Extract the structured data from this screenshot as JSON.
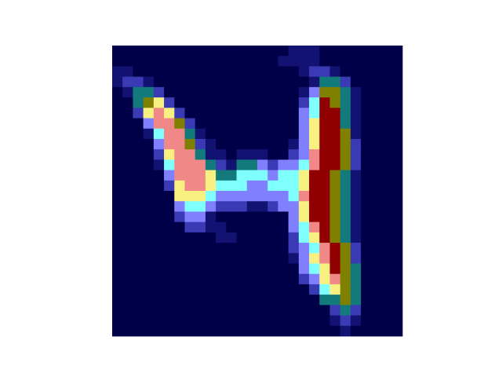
{
  "chart_data": {
    "type": "heatmap",
    "colors": [
      "#000048",
      "#121272",
      "#3a3ab4",
      "#8080ff",
      "#127a7a",
      "#80ffff",
      "#f8f080",
      "#f08888",
      "#808000",
      "#900000"
    ],
    "values": [
      [
        0,
        0,
        0,
        0,
        0,
        0,
        0,
        0,
        0,
        0,
        0,
        0,
        0,
        0,
        0,
        0,
        0,
        1,
        1,
        1,
        0,
        0,
        0,
        0,
        0,
        0,
        0,
        0
      ],
      [
        0,
        0,
        0,
        0,
        0,
        0,
        0,
        0,
        0,
        0,
        0,
        0,
        0,
        0,
        0,
        0,
        1,
        1,
        1,
        1,
        0,
        0,
        0,
        0,
        0,
        0,
        0,
        0
      ],
      [
        1,
        1,
        0,
        0,
        0,
        0,
        0,
        0,
        0,
        0,
        0,
        0,
        0,
        0,
        0,
        0,
        0,
        0,
        1,
        2,
        2,
        1,
        0,
        0,
        0,
        0,
        0,
        0
      ],
      [
        1,
        2,
        2,
        1,
        0,
        0,
        0,
        0,
        0,
        0,
        0,
        0,
        0,
        0,
        0,
        0,
        0,
        0,
        0,
        1,
        4,
        4,
        2,
        0,
        0,
        0,
        0,
        0
      ],
      [
        0,
        1,
        4,
        4,
        2,
        0,
        0,
        0,
        0,
        0,
        0,
        0,
        0,
        0,
        0,
        0,
        0,
        0,
        1,
        3,
        8,
        8,
        4,
        1,
        0,
        0,
        0,
        0
      ],
      [
        0,
        0,
        4,
        8,
        6,
        2,
        0,
        0,
        0,
        0,
        0,
        0,
        0,
        0,
        0,
        0,
        0,
        0,
        2,
        5,
        9,
        8,
        4,
        1,
        0,
        0,
        0,
        0
      ],
      [
        0,
        0,
        2,
        6,
        7,
        6,
        2,
        0,
        0,
        0,
        0,
        0,
        0,
        0,
        0,
        0,
        0,
        0,
        3,
        5,
        9,
        9,
        4,
        1,
        0,
        0,
        0,
        0
      ],
      [
        0,
        0,
        0,
        3,
        7,
        7,
        8,
        2,
        0,
        0,
        0,
        0,
        0,
        0,
        0,
        0,
        0,
        0,
        3,
        6,
        9,
        9,
        4,
        1,
        0,
        0,
        0,
        0
      ],
      [
        0,
        0,
        0,
        1,
        5,
        7,
        7,
        4,
        1,
        0,
        0,
        0,
        0,
        0,
        0,
        0,
        0,
        0,
        3,
        6,
        9,
        9,
        8,
        1,
        0,
        0,
        0,
        0
      ],
      [
        0,
        0,
        0,
        0,
        3,
        7,
        7,
        8,
        2,
        1,
        0,
        0,
        0,
        0,
        0,
        0,
        0,
        1,
        3,
        6,
        9,
        9,
        8,
        2,
        0,
        0,
        0,
        0
      ],
      [
        0,
        0,
        0,
        0,
        2,
        6,
        7,
        7,
        4,
        1,
        1,
        0,
        1,
        1,
        1,
        0,
        0,
        2,
        3,
        7,
        9,
        9,
        8,
        2,
        0,
        0,
        0,
        0
      ],
      [
        0,
        0,
        0,
        0,
        1,
        5,
        7,
        7,
        7,
        4,
        2,
        1,
        4,
        4,
        3,
        2,
        3,
        3,
        5,
        7,
        9,
        9,
        8,
        2,
        0,
        0,
        0,
        0
      ],
      [
        0,
        0,
        0,
        0,
        0,
        3,
        7,
        7,
        7,
        6,
        4,
        4,
        5,
        5,
        5,
        3,
        5,
        5,
        6,
        9,
        9,
        8,
        4,
        1,
        0,
        0,
        0,
        0
      ],
      [
        0,
        0,
        0,
        0,
        0,
        2,
        6,
        7,
        7,
        6,
        5,
        5,
        5,
        3,
        3,
        5,
        5,
        5,
        6,
        9,
        9,
        8,
        4,
        1,
        0,
        0,
        0,
        0
      ],
      [
        0,
        0,
        0,
        0,
        0,
        0,
        6,
        6,
        6,
        5,
        3,
        3,
        3,
        3,
        3,
        3,
        3,
        5,
        7,
        9,
        9,
        8,
        4,
        1,
        0,
        0,
        0,
        0
      ],
      [
        0,
        0,
        0,
        0,
        0,
        0,
        3,
        5,
        5,
        3,
        2,
        2,
        2,
        1,
        1,
        2,
        3,
        3,
        6,
        9,
        9,
        8,
        4,
        1,
        0,
        0,
        0,
        0
      ],
      [
        0,
        0,
        0,
        0,
        0,
        0,
        2,
        3,
        3,
        1,
        0,
        0,
        0,
        0,
        0,
        0,
        0,
        3,
        6,
        9,
        9,
        8,
        4,
        1,
        0,
        0,
        0,
        0
      ],
      [
        0,
        0,
        0,
        0,
        0,
        0,
        0,
        2,
        2,
        1,
        1,
        0,
        0,
        0,
        0,
        0,
        0,
        3,
        5,
        7,
        9,
        8,
        4,
        1,
        0,
        0,
        0,
        0
      ],
      [
        0,
        0,
        0,
        0,
        0,
        0,
        0,
        0,
        0,
        0,
        1,
        1,
        0,
        0,
        0,
        0,
        0,
        2,
        5,
        6,
        9,
        8,
        4,
        1,
        0,
        0,
        0,
        0
      ],
      [
        0,
        0,
        0,
        0,
        0,
        0,
        0,
        0,
        0,
        0,
        0,
        0,
        0,
        0,
        0,
        0,
        0,
        2,
        3,
        5,
        7,
        9,
        8,
        2,
        0,
        0,
        0,
        0
      ],
      [
        0,
        0,
        0,
        0,
        0,
        0,
        0,
        0,
        0,
        0,
        0,
        0,
        0,
        0,
        0,
        0,
        0,
        1,
        3,
        6,
        7,
        9,
        8,
        2,
        0,
        0,
        0,
        0
      ],
      [
        0,
        0,
        0,
        0,
        0,
        0,
        0,
        0,
        0,
        0,
        0,
        0,
        0,
        0,
        0,
        0,
        0,
        0,
        3,
        5,
        6,
        9,
        8,
        4,
        0,
        0,
        0,
        0
      ],
      [
        0,
        0,
        0,
        0,
        0,
        0,
        0,
        0,
        0,
        0,
        0,
        0,
        0,
        0,
        0,
        0,
        0,
        0,
        2,
        3,
        6,
        7,
        8,
        4,
        0,
        0,
        0,
        0
      ],
      [
        0,
        0,
        0,
        0,
        0,
        0,
        0,
        0,
        0,
        0,
        0,
        0,
        0,
        0,
        0,
        0,
        0,
        0,
        0,
        2,
        5,
        6,
        8,
        4,
        0,
        0,
        0,
        0
      ],
      [
        0,
        0,
        0,
        0,
        0,
        0,
        0,
        0,
        0,
        0,
        0,
        0,
        0,
        0,
        0,
        0,
        0,
        0,
        0,
        0,
        4,
        4,
        8,
        4,
        0,
        0,
        0,
        0
      ],
      [
        0,
        0,
        0,
        0,
        0,
        0,
        0,
        0,
        0,
        0,
        0,
        0,
        0,
        0,
        0,
        0,
        0,
        0,
        0,
        0,
        0,
        2,
        4,
        2,
        0,
        0,
        0,
        0
      ],
      [
        0,
        0,
        0,
        0,
        0,
        0,
        0,
        0,
        0,
        0,
        0,
        0,
        0,
        0,
        0,
        0,
        0,
        0,
        0,
        0,
        0,
        1,
        2,
        1,
        0,
        0,
        0,
        0
      ],
      [
        0,
        0,
        0,
        0,
        0,
        0,
        0,
        0,
        0,
        0,
        0,
        0,
        0,
        0,
        0,
        0,
        0,
        0,
        0,
        0,
        0,
        0,
        1,
        0,
        0,
        0,
        0,
        0
      ]
    ]
  }
}
